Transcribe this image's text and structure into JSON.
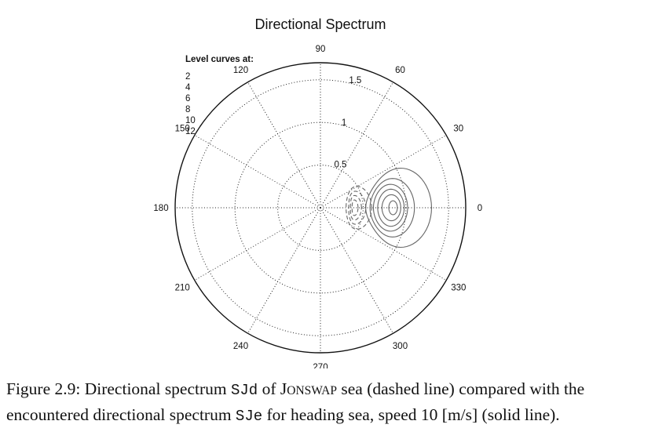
{
  "chart_data": {
    "type": "polar-contour",
    "title": "Directional Spectrum",
    "radial_ticks": [
      "0.5",
      "1",
      "1.5"
    ],
    "radial_tick_values": [
      0.5,
      1,
      1.5
    ],
    "rmax": 1.7,
    "angle_ticks_deg": [
      0,
      30,
      60,
      90,
      120,
      150,
      180,
      210,
      240,
      270,
      300,
      330
    ],
    "angle_tick_labels": [
      "0",
      "30",
      "60",
      "90",
      "120",
      "150",
      "180",
      "210",
      "240",
      "270",
      "300",
      "330"
    ],
    "grid": "dotted",
    "legend": {
      "title": "Level curves at:",
      "levels": [
        "2",
        "4",
        "6",
        "8",
        "10",
        "12"
      ],
      "placement": "top-left"
    },
    "series": [
      {
        "label": "SJe",
        "style": "solid",
        "color": "#666666",
        "peak": {
          "angle_deg": 0,
          "r": 0.87
        },
        "contours": [
          {
            "level": 2,
            "r_min": 0.53,
            "r_max": 1.3,
            "angle_span_deg": 56
          },
          {
            "level": 4,
            "r_min": 0.58,
            "r_max": 1.1,
            "angle_span_deg": 46
          },
          {
            "level": 6,
            "r_min": 0.62,
            "r_max": 1.02,
            "angle_span_deg": 38
          },
          {
            "level": 8,
            "r_min": 0.67,
            "r_max": 0.98,
            "angle_span_deg": 30
          },
          {
            "level": 10,
            "r_min": 0.72,
            "r_max": 0.94,
            "angle_span_deg": 21
          },
          {
            "level": 12,
            "r_min": 0.8,
            "r_max": 0.9,
            "angle_span_deg": 11
          }
        ]
      },
      {
        "label": "SJd",
        "style": "dashed",
        "color": "#666666",
        "peak": {
          "angle_deg": 0,
          "r": 0.38
        },
        "contours": [
          {
            "level": 2,
            "r_min": 0.3,
            "r_max": 0.6,
            "angle_span_deg": 64
          },
          {
            "level": 4,
            "r_min": 0.33,
            "r_max": 0.53,
            "angle_span_deg": 52
          },
          {
            "level": 6,
            "r_min": 0.35,
            "r_max": 0.48,
            "angle_span_deg": 40
          },
          {
            "level": 8,
            "r_min": 0.37,
            "r_max": 0.44,
            "angle_span_deg": 26
          }
        ]
      }
    ]
  },
  "caption": {
    "prefix": "Figure 2.9: Directional spectrum ",
    "code1": "SJd",
    "mid1": " of ",
    "jons_big": "J",
    "jons_small": "ONSWAP",
    "mid2": " sea (dashed line) compared with the encountered directional spectrum ",
    "code2": "SJe",
    "suffix": " for heading sea, speed 10 [m/s] (solid line)."
  }
}
